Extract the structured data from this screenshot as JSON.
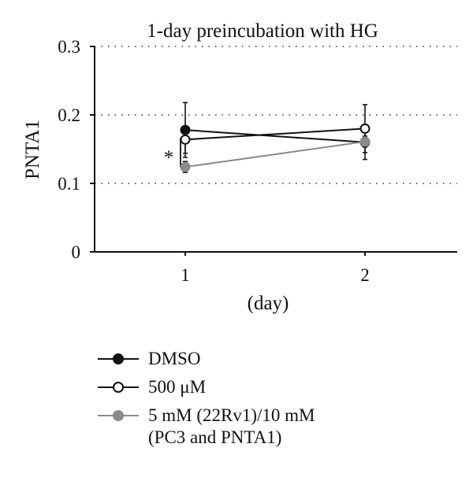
{
  "chart_data": {
    "type": "line",
    "title": "1-day preincubation with HG",
    "xlabel": "(day)",
    "ylabel": "PNTA1",
    "categories": [
      "1",
      "2"
    ],
    "ylim": [
      0,
      0.3
    ],
    "yticks": [
      "0",
      "0.1",
      "0.2",
      "0.3"
    ],
    "grid": "horizontal dotted",
    "annotation": "*",
    "series": [
      {
        "name": "DMSO",
        "values": [
          0.178,
          0.16
        ],
        "error": [
          0.04,
          0.025
        ],
        "color": "#111111",
        "marker": "filled"
      },
      {
        "name": "500 μM",
        "values": [
          0.164,
          0.18
        ],
        "error": [
          0.02,
          0.035
        ],
        "color": "#111111",
        "marker": "open"
      },
      {
        "name": "5 mM (22Rv1)/10 mM\n(PC3 and PNTA1)",
        "values": [
          0.124,
          0.161
        ],
        "error": [
          0.008,
          0.008
        ],
        "color": "#8a8a8a",
        "marker": "filled"
      }
    ],
    "legend_position": "bottom"
  }
}
